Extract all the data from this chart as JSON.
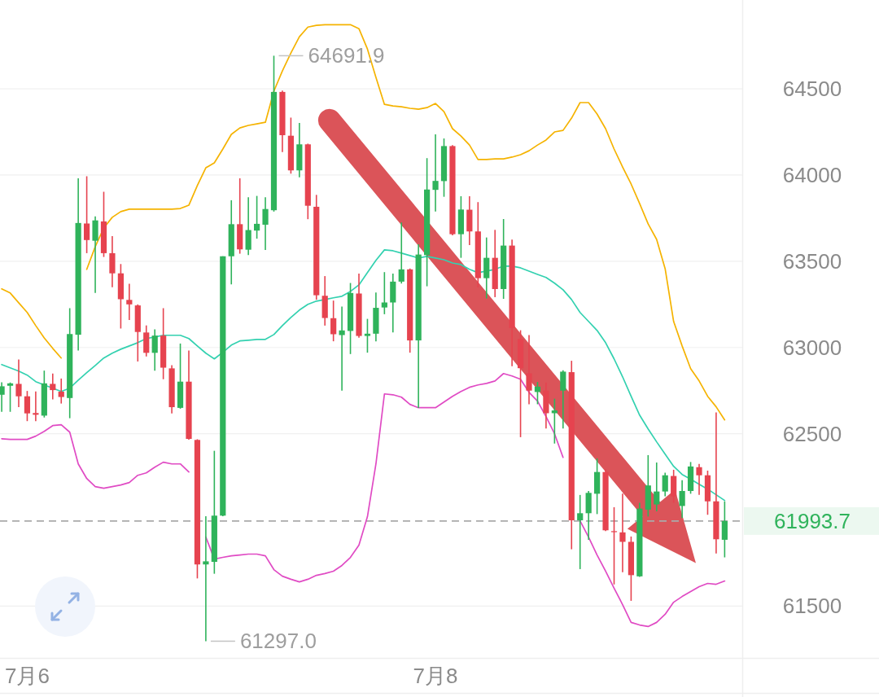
{
  "chart_data": {
    "type": "candlestick",
    "categories": [
      null,
      null,
      null,
      "7月6",
      null,
      null,
      null,
      null,
      null,
      null,
      null,
      null,
      null,
      null,
      null,
      null,
      null,
      null,
      null,
      null,
      null,
      null,
      null,
      null,
      null,
      null,
      null,
      null,
      null,
      null,
      null,
      null,
      null,
      null,
      null,
      null,
      null,
      null,
      null,
      null,
      null,
      null,
      null,
      null,
      null,
      null,
      null,
      null,
      null,
      null,
      null,
      "7月8",
      null,
      null,
      null,
      null,
      null,
      null,
      null,
      null,
      null,
      null,
      null,
      null,
      null,
      null,
      null,
      null,
      null,
      null,
      null,
      null,
      null,
      null,
      null,
      null,
      null,
      null,
      null,
      null,
      null,
      null,
      null,
      null,
      null,
      null
    ],
    "ohlc": [
      [
        62726,
        62798,
        62627,
        62775
      ],
      [
        62778,
        62797,
        62627,
        62792
      ],
      [
        62789,
        62930,
        62654,
        62717
      ],
      [
        62717,
        62748,
        62573,
        62618
      ],
      [
        62620,
        62745,
        62573,
        62610
      ],
      [
        62605,
        62866,
        62594,
        62792
      ],
      [
        62789,
        62849,
        62699,
        62753
      ],
      [
        62744,
        62820,
        62675,
        62713
      ],
      [
        62707,
        63228,
        62590,
        63078
      ],
      [
        63074,
        63981,
        62982,
        63722
      ],
      [
        63719,
        63993,
        63547,
        63623
      ],
      [
        63619,
        63760,
        63316,
        63737
      ],
      [
        63731,
        63903,
        63525,
        63547
      ],
      [
        63547,
        63646,
        63349,
        63430
      ],
      [
        63430,
        63484,
        63110,
        63280
      ],
      [
        63276,
        63370,
        63159,
        63250
      ],
      [
        63244,
        63250,
        62919,
        63090
      ],
      [
        63087,
        63128,
        62948,
        62969
      ],
      [
        62969,
        63105,
        62865,
        63069
      ],
      [
        63069,
        63228,
        62816,
        62883
      ],
      [
        62879,
        62897,
        62618,
        62654
      ],
      [
        62650,
        63023,
        62645,
        62802
      ],
      [
        62802,
        62982,
        62465,
        62470
      ],
      [
        62464,
        62468,
        61661,
        61742
      ],
      [
        61742,
        62022,
        61297.0,
        61760
      ],
      [
        61757,
        62401,
        61688,
        62025
      ],
      [
        62025,
        63529,
        62022,
        63529
      ],
      [
        63529,
        63854,
        63366,
        63715
      ],
      [
        63715,
        63981,
        63544,
        63569
      ],
      [
        63567,
        63871,
        63536,
        63681
      ],
      [
        63678,
        63879,
        63631,
        63717
      ],
      [
        63712,
        63871,
        63565,
        63803
      ],
      [
        63796,
        64691.9,
        63788,
        64482
      ],
      [
        64482,
        64490,
        64133,
        64231
      ],
      [
        64228,
        64333,
        64008,
        64027
      ],
      [
        64027,
        64302,
        63987,
        64178
      ],
      [
        64178,
        64182,
        63744,
        63822
      ],
      [
        63816,
        63885,
        63277,
        63303
      ],
      [
        63300,
        63414,
        63127,
        63171
      ],
      [
        63170,
        63272,
        63036,
        63077
      ],
      [
        63072,
        63237,
        62750,
        63099
      ],
      [
        63096,
        63374,
        62962,
        63316
      ],
      [
        63313,
        63429,
        63057,
        63067
      ],
      [
        63067,
        63166,
        62970,
        63080
      ],
      [
        63080,
        63319,
        63036,
        63230
      ],
      [
        63232,
        63437,
        63193,
        63261
      ],
      [
        63261,
        63429,
        63088,
        63382
      ],
      [
        63382,
        63725,
        63371,
        63453
      ],
      [
        63453,
        63458,
        62970,
        63041
      ],
      [
        63041,
        63599,
        62650,
        63539
      ],
      [
        63536,
        64098,
        63355,
        63916
      ],
      [
        63914,
        64236,
        63788,
        63966
      ],
      [
        63965,
        64212,
        63874,
        64168
      ],
      [
        64168,
        64173,
        63651,
        63657
      ],
      [
        63657,
        63877,
        63520,
        63800
      ],
      [
        63799,
        63877,
        63594,
        63673
      ],
      [
        63673,
        63843,
        63348,
        63402
      ],
      [
        63402,
        63638,
        63284,
        63520
      ],
      [
        63520,
        63682,
        63292,
        63339
      ],
      [
        63339,
        63745,
        63282,
        63591
      ],
      [
        63591,
        63626,
        62891,
        63113
      ],
      [
        63050,
        63100,
        62480,
        62880
      ],
      [
        62850,
        63072,
        62671,
        62750
      ],
      [
        62742,
        62800,
        62671,
        62773
      ],
      [
        62750,
        62797,
        62530,
        62619
      ],
      [
        62619,
        62703,
        62443,
        62635
      ],
      [
        62750,
        62868,
        62530,
        62860
      ],
      [
        62857,
        62923,
        61830,
        61998
      ],
      [
        61998,
        62145,
        61715,
        62039
      ],
      [
        62039,
        62168,
        61885,
        62157
      ],
      [
        62152,
        62357,
        62034,
        62278
      ],
      [
        62278,
        62294,
        61935,
        61940
      ],
      [
        61935,
        62074,
        61626,
        61930
      ],
      [
        61928,
        62152,
        61697,
        61873
      ],
      [
        61873,
        61904,
        61531,
        61680
      ],
      [
        61673,
        62100,
        61670,
        62066
      ],
      [
        62060,
        62376,
        62020,
        62200
      ],
      [
        62090,
        62333,
        62050,
        62165
      ],
      [
        62165,
        62274,
        62137,
        62259
      ],
      [
        62255,
        62291,
        62100,
        62137
      ],
      [
        62081,
        62231,
        62011,
        62168
      ],
      [
        62168,
        62336,
        62152,
        62310
      ],
      [
        62306,
        62325,
        62145,
        62259
      ],
      [
        62259,
        62286,
        62030,
        62108
      ],
      [
        62108,
        62624,
        61806,
        61888
      ],
      [
        61885,
        62108,
        61783,
        61993.7
      ]
    ],
    "colors": [
      "#2fb35b",
      "#2fb35b",
      "#e6434f",
      "#e6434f",
      "#e6434f",
      "#2fb35b",
      "#e6434f",
      "#e6434f",
      "#2fb35b",
      "#2fb35b",
      "#e6434f",
      "#2fb35b",
      "#e6434f",
      "#e6434f",
      "#e6434f",
      "#e6434f",
      "#e6434f",
      "#e6434f",
      "#2fb35b",
      "#e6434f",
      "#e6434f",
      "#2fb35b",
      "#e6434f",
      "#e6434f",
      "#2fb35b",
      "#2fb35b",
      "#2fb35b",
      "#2fb35b",
      "#e6434f",
      "#2fb35b",
      "#2fb35b",
      "#2fb35b",
      "#2fb35b",
      "#e6434f",
      "#e6434f",
      "#2fb35b",
      "#e6434f",
      "#e6434f",
      "#e6434f",
      "#e6434f",
      "#2fb35b",
      "#2fb35b",
      "#e6434f",
      "#2fb35b",
      "#2fb35b",
      "#2fb35b",
      "#2fb35b",
      "#2fb35b",
      "#e6434f",
      "#2fb35b",
      "#2fb35b",
      "#2fb35b",
      "#2fb35b",
      "#e6434f",
      "#2fb35b",
      "#e6434f",
      "#e6434f",
      "#2fb35b",
      "#e6434f",
      "#2fb35b",
      "#e6434f",
      "#e6434f",
      "#e6434f",
      "#2fb35b",
      "#e6434f",
      "#2fb35b",
      "#2fb35b",
      "#e6434f",
      "#2fb35b",
      "#2fb35b",
      "#2fb35b",
      "#e6434f",
      "#e6434f",
      "#e6434f",
      "#e6434f",
      "#2fb35b",
      "#2fb35b",
      "#2fb35b",
      "#2fb35b",
      "#e6434f",
      "#2fb35b",
      "#2fb35b",
      "#e6434f",
      "#e6434f",
      "#e6434f",
      "#2fb35b"
    ],
    "series": [
      {
        "type": "line",
        "color": "#f5b300",
        "values": [
          63340,
          63316,
          63259,
          63203,
          63127,
          63056,
          62995,
          62939,
          null,
          null,
          63453,
          63585,
          63693,
          63755,
          63788,
          63802,
          63802,
          63802,
          63802,
          63802,
          63802,
          63806,
          63825,
          63939,
          64042,
          64071,
          64151,
          64236,
          64273,
          64288,
          64297,
          64306,
          64486,
          64604,
          64707,
          64802,
          64858,
          64868,
          64872,
          64872,
          64872,
          64872,
          64849,
          64731,
          64566,
          64410,
          64401,
          64396,
          64387,
          64382,
          64391,
          64415,
          64368,
          64269,
          64226,
          64174,
          64090,
          64090,
          64094,
          64094,
          64104,
          64118,
          64141,
          64174,
          64203,
          64250,
          64259,
          64330,
          64420,
          64420,
          64354,
          64269,
          64151,
          64047,
          63948,
          63835,
          63717,
          63627,
          63457,
          63151,
          63009,
          62877,
          62806,
          62717,
          62656,
          62580
        ]
      },
      {
        "type": "line",
        "color": "#33d1b0",
        "values": [
          62901,
          62882,
          62863,
          62840,
          62802,
          62783,
          62764,
          62745,
          62764,
          62811,
          62854,
          62896,
          62939,
          62967,
          62990,
          63009,
          63028,
          63052,
          63061,
          63071,
          63071,
          63071,
          63052,
          63009,
          62967,
          62934,
          62972,
          63014,
          63038,
          63042,
          63047,
          63047,
          63075,
          63127,
          63174,
          63217,
          63250,
          63269,
          63278,
          63288,
          63297,
          63325,
          63363,
          63434,
          63505,
          63566,
          63561,
          63547,
          63533,
          63519,
          63528,
          63519,
          63509,
          63490,
          63481,
          63453,
          63434,
          63443,
          63453,
          63472,
          63472,
          63462,
          63443,
          63424,
          63406,
          63373,
          63335,
          63278,
          63203,
          63151,
          63099,
          63028,
          62934,
          62830,
          62717,
          62608,
          62528,
          62453,
          62382,
          62311,
          62264,
          62236,
          62207,
          62179,
          62146,
          62113
        ]
      },
      {
        "type": "line",
        "color": "#e04bc4",
        "values": [
          62471,
          62467,
          62467,
          62467,
          62486,
          62514,
          62547,
          62552,
          62509,
          62325,
          62240,
          62193,
          62184,
          62193,
          62203,
          62217,
          62259,
          62273,
          62306,
          62335,
          62325,
          62325,
          62278,
          null,
          61901,
          61773,
          61783,
          61792,
          61797,
          61802,
          61802,
          61792,
          61712,
          61674,
          61656,
          61641,
          61656,
          61679,
          61689,
          61703,
          61736,
          61783,
          61854,
          62019,
          62325,
          62731,
          62726,
          62712,
          62670,
          62651,
          62651,
          62651,
          62684,
          62717,
          62745,
          62769,
          62783,
          62792,
          62806,
          62849,
          62835,
          62816,
          62740,
          62689,
          62599,
          62500,
          62363,
          null,
          61995,
          61901,
          61797,
          61703,
          61604,
          61509,
          61406,
          61391,
          61382,
          61406,
          61453,
          61523,
          61556,
          61585,
          61613,
          61632,
          61627,
          61646
        ]
      }
    ],
    "ylim": [
      61200,
      65015
    ],
    "yticks": [
      64500,
      64000,
      63500,
      63000,
      62500,
      61500
    ],
    "grid": "y",
    "annotations": [
      "64691.9",
      "61297.0"
    ],
    "ref_lines": [
      {
        "axis": "y",
        "value": 61993.7,
        "label": "61993.7",
        "color": "#aaaaaa",
        "line_style": "dashed"
      }
    ]
  }
}
